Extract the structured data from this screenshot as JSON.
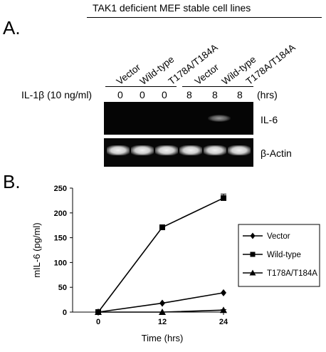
{
  "panel_a": {
    "letter": "A.",
    "header": "TAK1 deficient MEF stable cell lines",
    "lanes": [
      "Vector",
      "Wild-type",
      "T178A/T184A",
      "Vector",
      "Wild-type",
      "T178A/T184A"
    ],
    "treatment_label": "IL-1β (10 ng/ml)",
    "times": [
      "0",
      "0",
      "0",
      "8",
      "8",
      "8"
    ],
    "time_unit": "(hrs)",
    "blot_labels": [
      "IL-6",
      "β-Actin"
    ]
  },
  "panel_b": {
    "letter": "B."
  },
  "chart_data": {
    "type": "line",
    "x": [
      0,
      12,
      24
    ],
    "xticks": [
      "0",
      "12",
      "24"
    ],
    "xlabel": "Time (hrs)",
    "ylabel": "mIL-6 (pg/ml)",
    "ylim": [
      0,
      250
    ],
    "yticks": [
      "0",
      "50",
      "100",
      "150",
      "200",
      "250"
    ],
    "grid": false,
    "legend": "right",
    "series": [
      {
        "name": "Vector",
        "marker": "diamond",
        "values": [
          0,
          18,
          39
        ]
      },
      {
        "name": "Wild-type",
        "marker": "square",
        "values": [
          0,
          171,
          230
        ],
        "error": [
          0,
          2,
          8
        ]
      },
      {
        "name": "T178A/T184A",
        "marker": "triangle",
        "values": [
          0,
          0,
          4
        ],
        "error": [
          0,
          0,
          1
        ]
      }
    ]
  }
}
